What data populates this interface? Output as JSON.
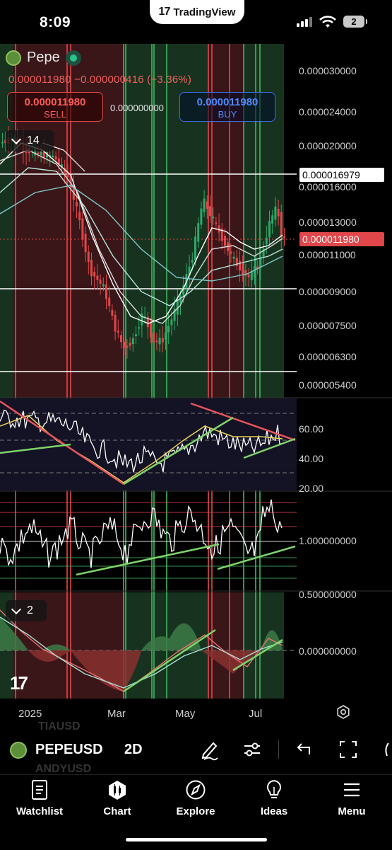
{
  "status": {
    "time": "8:09",
    "app_pill": "TradingView",
    "battery": "2"
  },
  "legend": {
    "symbol": "Pepe",
    "ohlc": "0.000011980 −0.000000416 (−3.36%)",
    "sell_price": "0.000011980",
    "sell_label": "SELL",
    "spread": "0.000000000",
    "buy_price": "0.000011980",
    "buy_label": "BUY",
    "interval_main": "14",
    "interval_osc": "2"
  },
  "price_axis": {
    "labels": [
      "0.000030000",
      "0.000024000",
      "0.000020000",
      "0.000016000",
      "0.000013000",
      "0.000011000",
      "0.000009000",
      "0.000007500",
      "0.000006300",
      "0.000005400"
    ],
    "highlight_white": "0.000016979",
    "highlight_red": "0.000011980"
  },
  "rsi_axis": {
    "labels": [
      "60.00",
      "40.00",
      "20.00"
    ]
  },
  "osc_axis": {
    "labels": [
      "1.000000000",
      "0.500000000",
      "0.000000000"
    ]
  },
  "time_axis": {
    "labels": [
      "2025",
      "Mar",
      "May",
      "Jul"
    ]
  },
  "symbol_bar": {
    "symbol": "PEPEUSD",
    "interval": "2D",
    "ghost_above": "TIAUSD",
    "ghost_below": "ANDYUSD"
  },
  "tabs": [
    {
      "label": "Watchlist",
      "icon": "watchlist-icon"
    },
    {
      "label": "Chart",
      "icon": "chart-icon"
    },
    {
      "label": "Explore",
      "icon": "compass-icon"
    },
    {
      "label": "Ideas",
      "icon": "lightbulb-icon"
    },
    {
      "label": "Menu",
      "icon": "menu-icon"
    }
  ],
  "colors": {
    "up": "#2ea86a",
    "down": "#e0464a",
    "sell": "#ff5b5b",
    "buy": "#4f8bff"
  }
}
